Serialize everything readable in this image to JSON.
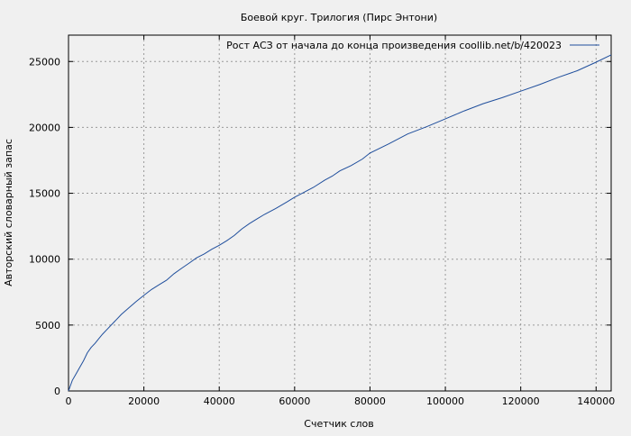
{
  "chart_data": {
    "type": "line",
    "title": "Боевой круг. Трилогия (Пирс Энтони)",
    "xlabel": "Счетчик слов",
    "ylabel": "Авторский словарный запас",
    "xlim": [
      0,
      144000
    ],
    "ylim": [
      0,
      27000
    ],
    "x_ticks": [
      0,
      20000,
      40000,
      60000,
      80000,
      100000,
      120000,
      140000
    ],
    "y_ticks": [
      0,
      5000,
      10000,
      15000,
      20000,
      25000
    ],
    "grid": true,
    "legend_position": "top-right",
    "line_color": "#1f4e9c",
    "series": [
      {
        "name": "Рост АСЗ от начала до конца произведения  coollib.net/b/420023",
        "x": [
          0,
          1000,
          2000,
          3000,
          4000,
          5000,
          6000,
          7000,
          8000,
          9000,
          10000,
          12000,
          14000,
          16000,
          18000,
          20000,
          22000,
          24000,
          26000,
          28000,
          30000,
          32000,
          34000,
          36000,
          38000,
          40000,
          42000,
          44000,
          46000,
          48000,
          50000,
          52000,
          55000,
          58000,
          60000,
          62000,
          65000,
          68000,
          70000,
          72000,
          75000,
          78000,
          80000,
          85000,
          90000,
          95000,
          100000,
          105000,
          110000,
          115000,
          120000,
          125000,
          130000,
          135000,
          140000,
          144000
        ],
        "y": [
          0,
          800,
          1300,
          1800,
          2300,
          2900,
          3300,
          3600,
          3950,
          4300,
          4600,
          5200,
          5800,
          6300,
          6800,
          7250,
          7700,
          8050,
          8400,
          8900,
          9300,
          9700,
          10100,
          10400,
          10750,
          11050,
          11400,
          11800,
          12300,
          12700,
          13050,
          13400,
          13850,
          14350,
          14700,
          15000,
          15450,
          16000,
          16300,
          16700,
          17100,
          17600,
          18050,
          18750,
          19500,
          20050,
          20650,
          21250,
          21800,
          22250,
          22750,
          23250,
          23800,
          24300,
          24950,
          25500
        ]
      }
    ]
  }
}
